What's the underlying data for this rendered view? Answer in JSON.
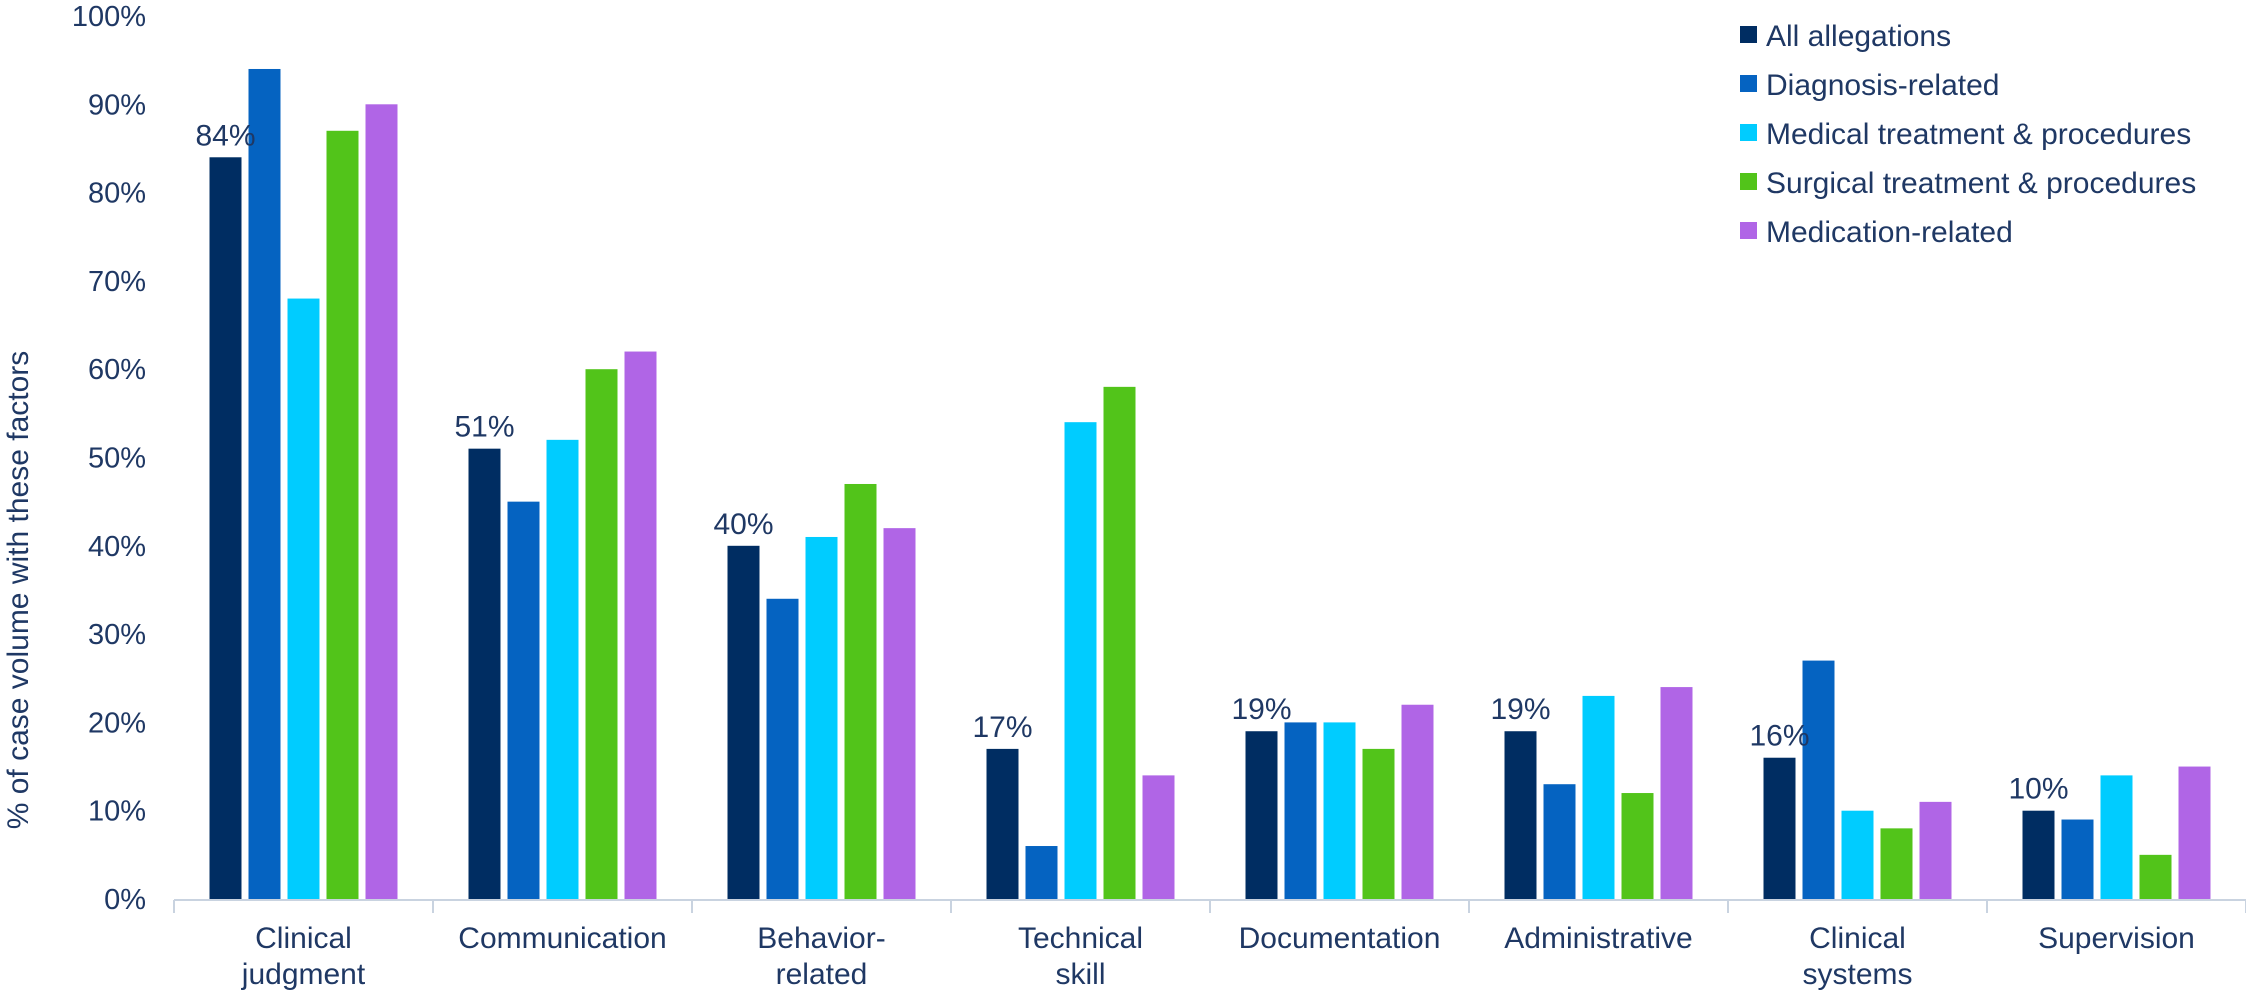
{
  "chart_data": {
    "type": "bar",
    "ylabel": "% of case volume with these factors",
    "ylim": [
      0,
      100
    ],
    "yticks": [
      "0%",
      "10%",
      "20%",
      "30%",
      "40%",
      "50%",
      "60%",
      "70%",
      "80%",
      "90%",
      "100%"
    ],
    "legend_position": "top-right",
    "grid": false,
    "categories": [
      [
        "Clinical",
        "judgment"
      ],
      [
        "Communication"
      ],
      [
        "Behavior-",
        "related"
      ],
      [
        "Technical",
        "skill"
      ],
      [
        "Documentation"
      ],
      [
        "Administrative"
      ],
      [
        "Clinical",
        "systems"
      ],
      [
        "Supervision"
      ]
    ],
    "series": [
      {
        "name": "All allegations",
        "color": "#002D62",
        "values": [
          84,
          51,
          40,
          17,
          19,
          19,
          16,
          10
        ]
      },
      {
        "name": "Diagnosis-related",
        "color": "#0563C1",
        "values": [
          94,
          45,
          34,
          6,
          20,
          13,
          27,
          9
        ]
      },
      {
        "name": "Medical treatment & procedures",
        "color": "#00CCFF",
        "values": [
          68,
          52,
          41,
          54,
          20,
          23,
          10,
          14
        ]
      },
      {
        "name": "Surgical treatment & procedures",
        "color": "#52C41A",
        "values": [
          87,
          60,
          47,
          58,
          17,
          12,
          8,
          5
        ]
      },
      {
        "name": "Medication-related",
        "color": "#B065E6",
        "values": [
          90,
          62,
          42,
          14,
          22,
          24,
          11,
          15
        ]
      }
    ],
    "data_labels": [
      "84%",
      "51%",
      "40%",
      "17%",
      "19%",
      "19%",
      "16%",
      "10%"
    ],
    "axis_color": "#C9D3E0"
  }
}
